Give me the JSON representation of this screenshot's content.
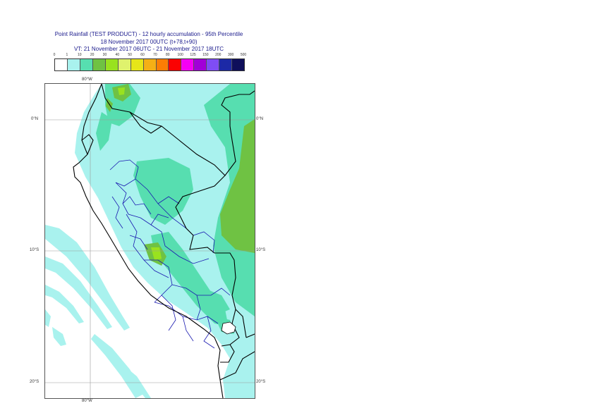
{
  "title": {
    "line1": "Point Rainfall (TEST PRODUCT) - 12 hourly accumulation - 95th Percentile",
    "line2": "18 November 2017 00UTC (t+78,t+90)",
    "line3": "VT: 21 November 2017 06UTC - 21 November 2017 18UTC"
  },
  "legend": {
    "ticks": [
      "0",
      "1",
      "10",
      "20",
      "30",
      "40",
      "50",
      "60",
      "70",
      "80",
      "100",
      "125",
      "150",
      "200",
      "300",
      "500"
    ],
    "colors": [
      "#ffffff",
      "#a9f2ee",
      "#57deb0",
      "#6fc243",
      "#99e21f",
      "#dff26d",
      "#e6e619",
      "#f5b015",
      "#fc7d04",
      "#fb0202",
      "#f500f5",
      "#a100d8",
      "#7f4df5",
      "#1c29a6",
      "#0f0f5b"
    ]
  },
  "axes": {
    "top_lon": "80°W",
    "bottom_lon": "80°W",
    "lat_left": [
      "0°N",
      "10°S",
      "20°S"
    ],
    "lat_right": [
      "0°N",
      "10°S",
      "20°S"
    ]
  },
  "colors": {
    "very_light": "#a9f2ee",
    "light": "#57deb0",
    "medium": "#6fc243",
    "high": "#99e21f",
    "peak": "#dff26d",
    "boundary": "#000000",
    "admin": "#1a1ab0",
    "graticule": "#9a9a9a"
  }
}
